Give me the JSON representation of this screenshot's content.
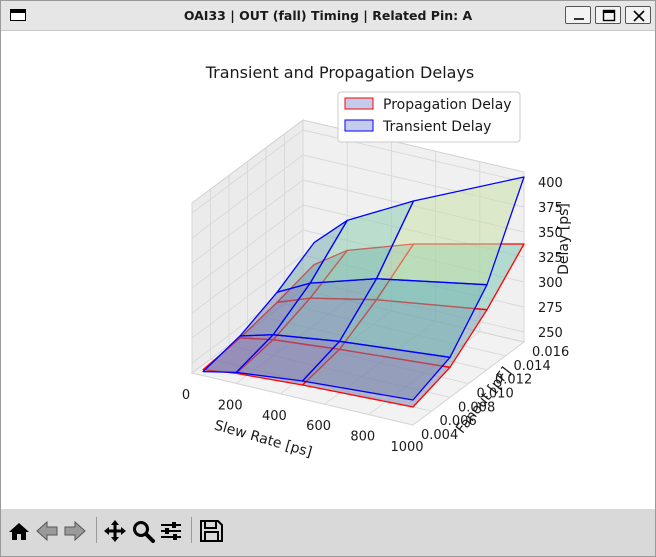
{
  "window": {
    "title": "OAI33 | OUT (fall) Timing | Related Pin: A",
    "controls": [
      "minimize",
      "maximize",
      "close"
    ]
  },
  "toolbar": {
    "buttons": [
      {
        "name": "home",
        "icon": "home-icon"
      },
      {
        "name": "back",
        "icon": "back-arrow-icon"
      },
      {
        "name": "forward",
        "icon": "forward-arrow-icon"
      },
      {
        "name": "pan",
        "icon": "move-icon"
      },
      {
        "name": "zoom",
        "icon": "zoom-icon"
      },
      {
        "name": "configure",
        "icon": "sliders-icon"
      },
      {
        "name": "save",
        "icon": "save-icon"
      }
    ]
  },
  "colors": {
    "propagation_edge": "#ff0000",
    "propagation_fill": "#c5cbea",
    "transient_edge": "#0000ff",
    "transient_fill": "#c5cbea",
    "surface_low": "#7b5aa6",
    "surface_mid": "#6ec1b0",
    "surface_high": "#f7f09a"
  },
  "chart_data": {
    "type": "surface3d",
    "title": "Transient and Propagation Delays",
    "xlabel": "Slew Rate [ps]",
    "ylabel": "Fanout [pF]",
    "zlabel": "Delay [ps]",
    "x_ticks": [
      "0",
      "200",
      "400",
      "600",
      "800",
      "1000"
    ],
    "y_ticks": [
      "0.004",
      "0.006",
      "0.008",
      "0.010",
      "0.012",
      "0.014",
      "0.016"
    ],
    "z_ticks": [
      "250",
      "275",
      "300",
      "325",
      "350",
      "375",
      "400"
    ],
    "xlim": [
      0,
      1000
    ],
    "ylim": [
      0.004,
      0.016
    ],
    "zlim": [
      240,
      410
    ],
    "legend": {
      "placement": "top-right",
      "entries": [
        {
          "label": "Propagation Delay",
          "edge": "#ff0000"
        },
        {
          "label": "Transient Delay",
          "edge": "#0000ff"
        }
      ]
    },
    "grid": true,
    "x": [
      50,
      200,
      500,
      1000
    ],
    "y": [
      0.004,
      0.008,
      0.012,
      0.016
    ],
    "series": [
      {
        "name": "Propagation Delay",
        "z": [
          [
            244,
            251,
            258,
            265
          ],
          [
            252,
            261,
            270,
            280
          ],
          [
            268,
            285,
            305,
            325
          ],
          [
            290,
            320,
            355,
            405
          ]
        ]
      },
      {
        "name": "Transient Delay",
        "z": [
          [
            246,
            250,
            254,
            258
          ],
          [
            250,
            256,
            262,
            270
          ],
          [
            258,
            270,
            284,
            300
          ],
          [
            268,
            290,
            312,
            338
          ]
        ]
      }
    ]
  }
}
